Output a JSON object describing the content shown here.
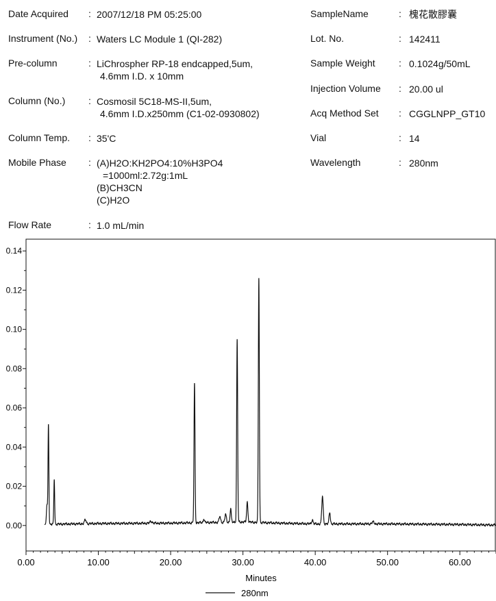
{
  "info_left": [
    {
      "label": "Date Acquired",
      "colon": ":",
      "lines": [
        "2007/12/18 PM 05:25:00"
      ]
    },
    {
      "label": "Instrument (No.)",
      "colon": ":",
      "lines": [
        "Waters LC Module 1 (QI-282)"
      ]
    },
    {
      "label": "Pre-column",
      "colon": ":",
      "lines": [
        "LiChrospher RP-18 endcapped,5um,",
        "4.6mm I.D. x 10mm"
      ]
    },
    {
      "label": "Column (No.)",
      "colon": ":",
      "lines": [
        "Cosmosil 5C18-MS-II,5um,",
        "4.6mm I.D.x250mm (C1-02-0930802)"
      ]
    },
    {
      "label": "Column Temp.",
      "colon": ":",
      "lines": [
        "35'C"
      ]
    },
    {
      "label": "Mobile Phase",
      "colon": ":",
      "lines": [
        "(A)H2O:KH2PO4:10%H3PO4",
        "=1000ml:2.72g:1mL",
        "(B)CH3CN",
        "(C)H2O"
      ]
    },
    {
      "label": "Flow Rate",
      "colon": ":",
      "lines": [
        "1.0 mL/min"
      ]
    }
  ],
  "info_right": [
    {
      "label": "SampleName",
      "colon": ":",
      "value": "槐花散膠囊"
    },
    {
      "label": "Lot. No.",
      "colon": ":",
      "value": "142411"
    },
    {
      "label": "Sample Weight",
      "colon": ":",
      "value": "0.1024g/50mL"
    },
    {
      "label": "Injection Volume",
      "colon": ":",
      "value": "20.00 ul"
    },
    {
      "label": "Acq Method Set",
      "colon": ":",
      "value": "CGGLNPP_GT10"
    },
    {
      "label": "Vial",
      "colon": ":",
      "value": "14"
    },
    {
      "label": "Wavelength",
      "colon": ":",
      "value": "280nm"
    }
  ],
  "chart_data": {
    "type": "line",
    "title": "",
    "xlabel": "Minutes",
    "ylabel": "",
    "xlim": [
      0,
      65
    ],
    "ylim": [
      -0.013,
      0.146
    ],
    "x_ticks": [
      "0.00",
      "10.00",
      "20.00",
      "30.00",
      "40.00",
      "50.00",
      "60.00"
    ],
    "y_ticks": [
      "0.00",
      "0.02",
      "0.04",
      "0.06",
      "0.08",
      "0.10",
      "0.12",
      "0.14"
    ],
    "legend": {
      "position": "bottom-center",
      "entries": [
        "280nm"
      ]
    },
    "series_color": "#111111",
    "baseline": [
      [
        0,
        0.0
      ],
      [
        3,
        0.0006
      ],
      [
        10,
        0.001
      ],
      [
        20,
        0.0012
      ],
      [
        25,
        0.0015
      ],
      [
        30,
        0.0018
      ],
      [
        35,
        0.0012
      ],
      [
        40,
        0.0008
      ],
      [
        50,
        0.0008
      ],
      [
        60,
        0.0005
      ],
      [
        65,
        0.0002
      ]
    ],
    "peaks": [
      {
        "rt": 2.9,
        "height": 0.01,
        "width": 0.08
      },
      {
        "rt": 3.1,
        "height": 0.051,
        "width": 0.06
      },
      {
        "rt": 3.9,
        "height": 0.023,
        "width": 0.06
      },
      {
        "rt": 8.2,
        "height": 0.002,
        "width": 0.12
      },
      {
        "rt": 17.3,
        "height": 0.001,
        "width": 0.15
      },
      {
        "rt": 23.3,
        "height": 0.071,
        "width": 0.07
      },
      {
        "rt": 24.6,
        "height": 0.002,
        "width": 0.08
      },
      {
        "rt": 26.8,
        "height": 0.003,
        "width": 0.1
      },
      {
        "rt": 27.6,
        "height": 0.004,
        "width": 0.1
      },
      {
        "rt": 28.3,
        "height": 0.007,
        "width": 0.08
      },
      {
        "rt": 29.2,
        "height": 0.093,
        "width": 0.07
      },
      {
        "rt": 30.6,
        "height": 0.01,
        "width": 0.09
      },
      {
        "rt": 32.2,
        "height": 0.125,
        "width": 0.07
      },
      {
        "rt": 39.6,
        "height": 0.002,
        "width": 0.1
      },
      {
        "rt": 41.0,
        "height": 0.014,
        "width": 0.1
      },
      {
        "rt": 42.0,
        "height": 0.006,
        "width": 0.09
      },
      {
        "rt": 48.0,
        "height": 0.001,
        "width": 0.15
      }
    ]
  }
}
